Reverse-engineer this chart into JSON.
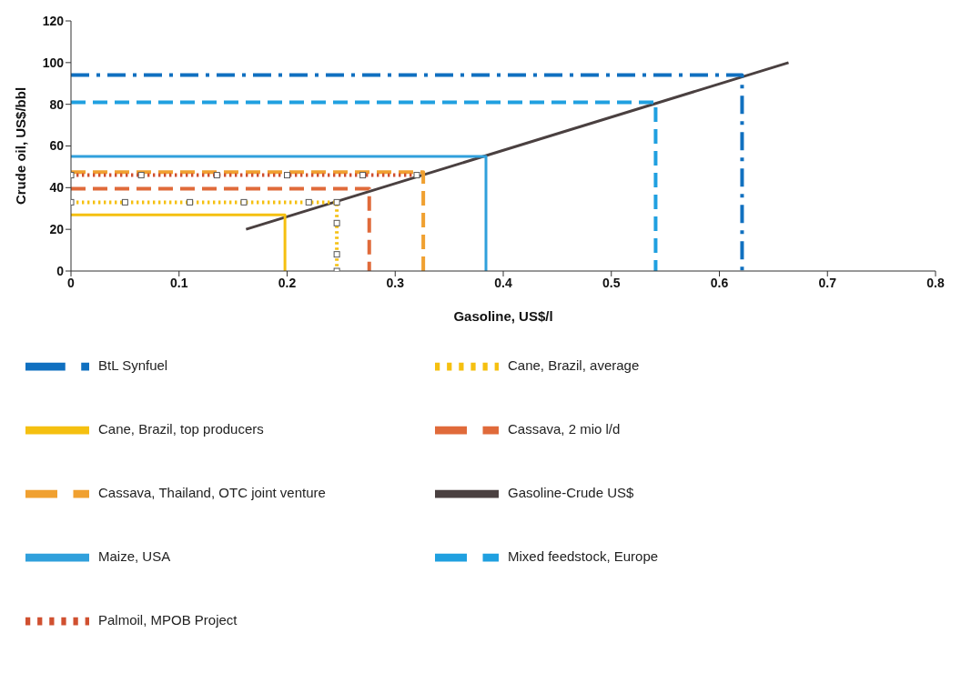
{
  "chart_data": {
    "type": "line",
    "xlabel": "Gasoline, US$/l",
    "ylabel": "Crude oil, US$/bbl",
    "xlim": [
      0,
      0.8
    ],
    "ylim": [
      0,
      120
    ],
    "xticks": [
      0,
      0.1,
      0.2,
      0.3,
      0.4,
      0.5,
      0.6,
      0.7,
      0.8
    ],
    "yticks": [
      0,
      20,
      40,
      60,
      80,
      100,
      120
    ],
    "grid": false,
    "marker": "none",
    "legend": "bottom",
    "series": [
      {
        "name": "Gasoline-Crude US$",
        "color": "#4a4040",
        "line_style": "solid",
        "x": [
          0.162,
          0.664
        ],
        "values": [
          20,
          100
        ]
      },
      {
        "name": "Cane, Brazil, top producers",
        "color": "#f5c010",
        "line_style": "solid",
        "x": [
          0,
          0.198,
          0.198
        ],
        "values": [
          27,
          27,
          0
        ]
      },
      {
        "name": "Cane, Brazil, average",
        "color": "#f5c010",
        "line_style": "dotted",
        "marker": "square",
        "x": [
          0,
          0.05,
          0.11,
          0.16,
          0.22,
          0.246,
          0.246,
          0.246,
          0.246
        ],
        "values": [
          33,
          33,
          33,
          33,
          33,
          33,
          23,
          8,
          0
        ]
      },
      {
        "name": "Cassava, 2 mio l/d",
        "color": "#e06a3a",
        "line_style": "dashed",
        "x": [
          0,
          0.276,
          0.276
        ],
        "values": [
          39.5,
          39.5,
          0
        ]
      },
      {
        "name": "Cassava, Thailand, OTC joint venture",
        "color": "#f0a030",
        "line_style": "dashed",
        "x": [
          0,
          0.326,
          0.326
        ],
        "values": [
          47.5,
          47.5,
          0
        ]
      },
      {
        "name": "Maize, USA",
        "color": "#30a0dc",
        "line_style": "solid",
        "x": [
          0,
          0.384,
          0.384
        ],
        "values": [
          55,
          55,
          0
        ]
      },
      {
        "name": "Mixed feedstock, Europe",
        "color": "#20a0e0",
        "line_style": "dashed",
        "x": [
          0,
          0.541,
          0.541
        ],
        "values": [
          81,
          81,
          0
        ]
      },
      {
        "name": "Palmoil, MPOB Project",
        "color": "#d05030",
        "line_style": "dotted",
        "marker": "square",
        "x": [
          0,
          0.065,
          0.135,
          0.2,
          0.27,
          0.32
        ],
        "values": [
          46,
          46,
          46,
          46,
          46,
          46
        ]
      },
      {
        "name": "BtL Synfuel",
        "color": "#1070c0",
        "line_style": "dashdot",
        "x": [
          0,
          0.621,
          0.621
        ],
        "values": [
          94,
          94,
          0
        ]
      }
    ]
  }
}
